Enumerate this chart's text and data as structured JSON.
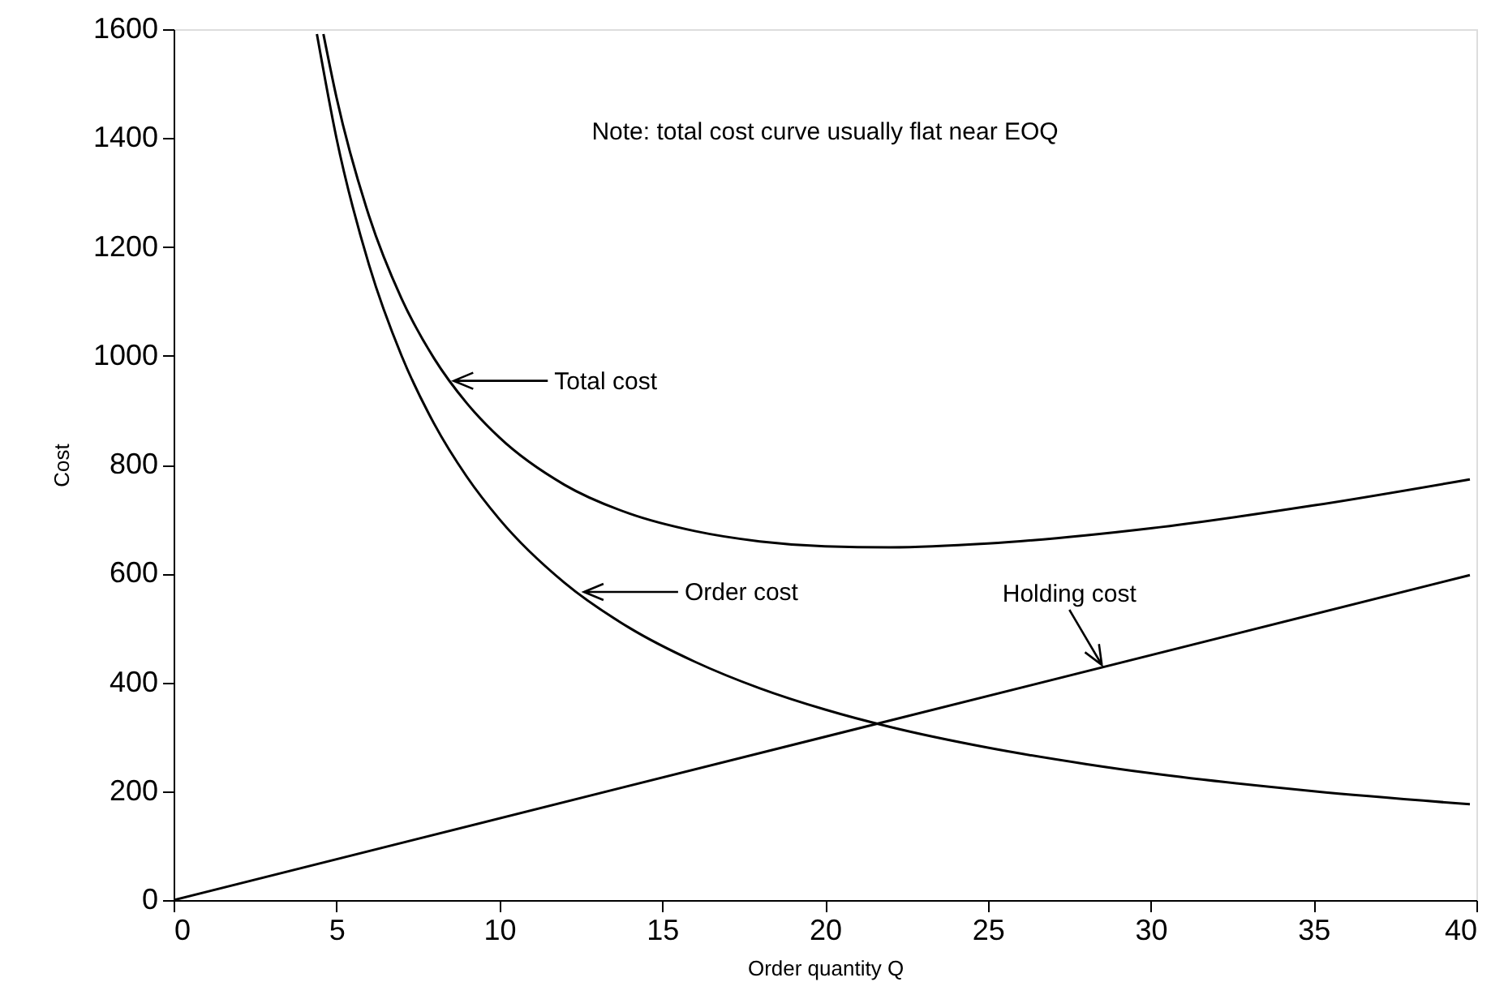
{
  "chart_data": {
    "type": "line",
    "xlabel": "Order quantity Q",
    "ylabel": "Cost",
    "xlim": [
      0,
      40
    ],
    "xticks": [
      0,
      5,
      10,
      15,
      20,
      25,
      30,
      35,
      40
    ],
    "ylim": [
      0,
      1600
    ],
    "yticks": [
      0,
      200,
      400,
      600,
      800,
      1000,
      1200,
      1400,
      1600
    ],
    "grid": false,
    "marker": "none",
    "line_style": "solid",
    "series": [
      {
        "color": "#000000",
        "x": [
          4.6,
          5,
          6,
          7,
          8,
          9,
          10,
          12,
          14,
          16,
          18,
          20,
          22,
          25,
          28,
          30,
          35,
          39.8
        ],
        "values": [
          1591,
          1475,
          1257,
          1105,
          995,
          913,
          850,
          763,
          710,
          678,
          659,
          650,
          648,
          655,
          670,
          683,
          725,
          773
        ]
      },
      {
        "color": "#000000",
        "x": [
          4.4,
          5,
          6,
          7,
          8,
          9,
          10,
          12,
          14,
          16,
          18,
          20,
          22,
          25,
          28,
          30,
          35,
          39.8
        ],
        "values": [
          1591,
          1400,
          1167,
          1000,
          875,
          778,
          700,
          583,
          500,
          438,
          389,
          350,
          318,
          280,
          250,
          233,
          200,
          176
        ]
      },
      {
        "color": "#000000",
        "x": [
          0,
          39.8
        ],
        "values": [
          0,
          597
        ]
      }
    ],
    "annotations": [
      "Note: total cost curve usually flat near EOQ",
      {
        "text": "Total cost",
        "x": 8.6,
        "y": 954
      },
      {
        "text": "Order cost",
        "x": 12.6,
        "y": 566
      },
      {
        "text": "Holding cost",
        "x": 28.5,
        "y": 432
      }
    ]
  }
}
